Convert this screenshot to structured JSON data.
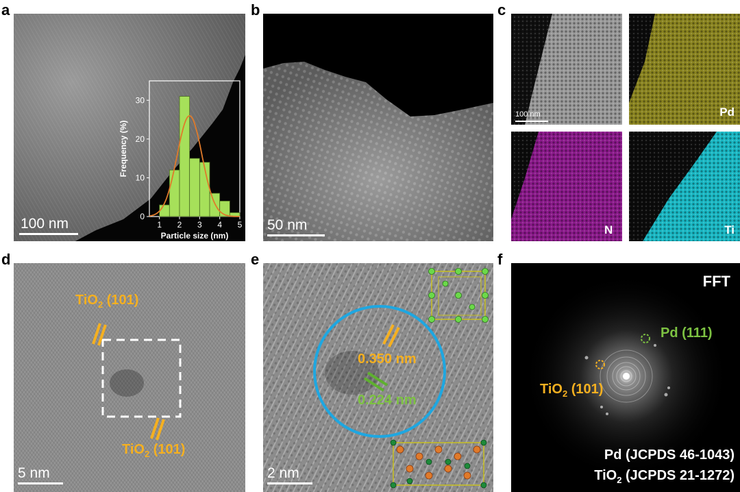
{
  "figure": {
    "panels": {
      "a": {
        "label": "a",
        "scale_bar": "100 nm",
        "inset": {
          "chart_data": {
            "type": "bar",
            "xlabel": "Particle size (nm)",
            "ylabel": "Frequency (%)",
            "xlim": [
              0.5,
              5
            ],
            "ylim": [
              0,
              35
            ],
            "xticks": [
              1,
              2,
              3,
              4,
              5
            ],
            "yticks": [
              0,
              10,
              20,
              30
            ],
            "bin_width": 0.25,
            "x": [
              1.25,
              1.75,
              2.25,
              2.75,
              3.25,
              3.75,
              4.25,
              4.75
            ],
            "values": [
              3,
              12,
              31,
              15,
              14,
              6,
              4,
              1
            ],
            "fit": {
              "type": "gaussian",
              "mean": 2.5,
              "sigma": 0.62,
              "peak": 26
            },
            "bar_color": "#a6e05a",
            "fit_color": "#e07a2a"
          }
        }
      },
      "b": {
        "label": "b",
        "scale_bar": "50 nm"
      },
      "c": {
        "label": "c",
        "scale_bar": "100 nm",
        "maps": [
          {
            "element": "",
            "color": "#bfbfbf"
          },
          {
            "element": "Pd",
            "color": "#c8c020"
          },
          {
            "element": "N",
            "color": "#d020d0"
          },
          {
            "element": "Ti",
            "color": "#20d8e0"
          }
        ]
      },
      "d": {
        "label": "d",
        "scale_bar": "5 nm",
        "annotations": {
          "top": "TiO",
          "top_sub": "2",
          "top_rest": " (101)",
          "bottom": "TiO",
          "bottom_sub": "2",
          "bottom_rest": " (101)"
        }
      },
      "e": {
        "label": "e",
        "scale_bar": "2 nm",
        "spacing_1": "0.350 nm",
        "spacing_2": "0.224 nm"
      },
      "f": {
        "label": "f",
        "title": "FFT",
        "pd_spot": "Pd (111)",
        "tio2_spot_main": "TiO",
        "tio2_spot_sub": "2",
        "tio2_spot_rest": " (101)",
        "ref_1": "Pd (JCPDS 46-1043)",
        "ref_2_main": "TiO",
        "ref_2_sub": "2",
        "ref_2_rest": " (JCPDS 21-1272)"
      }
    }
  }
}
